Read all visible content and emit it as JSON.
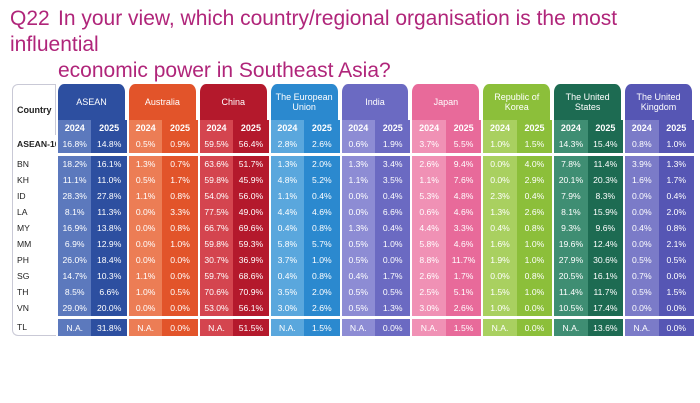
{
  "question": {
    "number": "Q22",
    "line1": "In your view, which country/regional organisation is the most influential",
    "line2": "economic power in Southeast Asia?"
  },
  "chart_data": {
    "type": "table",
    "row_header": "Country",
    "years": [
      "2024",
      "2025"
    ],
    "groups": [
      {
        "name": "ASEAN",
        "color": "#2d4fa0",
        "shade": "#5c79bd"
      },
      {
        "name": "Australia",
        "color": "#e2542a",
        "shade": "#ec7d55"
      },
      {
        "name": "China",
        "color": "#b4192c",
        "shade": "#d4454f"
      },
      {
        "name": "The European Union",
        "color": "#2b89cf",
        "shade": "#5aa7dd"
      },
      {
        "name": "India",
        "color": "#6b6ac2",
        "shade": "#8d8cd4"
      },
      {
        "name": "Japan",
        "color": "#e86a9a",
        "shade": "#f091b5"
      },
      {
        "name": "Republic of Korea",
        "color": "#8cbf3a",
        "shade": "#a9d060"
      },
      {
        "name": "The United States",
        "color": "#1d6b52",
        "shade": "#3f8e73"
      },
      {
        "name": "The United Kingdom",
        "color": "#5656b4",
        "shade": "#7b7bc8"
      }
    ],
    "rows": [
      {
        "country": "ASEAN-10",
        "values": [
          "16.8%",
          "14.8%",
          "0.5%",
          "0.9%",
          "59.5%",
          "56.4%",
          "2.8%",
          "2.6%",
          "0.6%",
          "1.9%",
          "3.7%",
          "5.5%",
          "1.0%",
          "1.5%",
          "14.3%",
          "15.4%",
          "0.8%",
          "1.0%"
        ]
      },
      {
        "country": "BN",
        "values": [
          "18.2%",
          "16.1%",
          "1.3%",
          "0.7%",
          "63.6%",
          "51.7%",
          "1.3%",
          "2.0%",
          "1.3%",
          "3.4%",
          "2.6%",
          "9.4%",
          "0.0%",
          "4.0%",
          "7.8%",
          "11.4%",
          "3.9%",
          "1.3%"
        ]
      },
      {
        "country": "KH",
        "values": [
          "11.1%",
          "11.0%",
          "0.5%",
          "1.7%",
          "59.8%",
          "45.9%",
          "4.8%",
          "5.2%",
          "1.1%",
          "3.5%",
          "1.1%",
          "7.6%",
          "0.0%",
          "2.9%",
          "20.1%",
          "20.3%",
          "1.6%",
          "1.7%"
        ]
      },
      {
        "country": "ID",
        "values": [
          "28.3%",
          "27.8%",
          "1.1%",
          "0.8%",
          "54.0%",
          "56.0%",
          "1.1%",
          "0.4%",
          "0.0%",
          "0.4%",
          "5.3%",
          "4.8%",
          "2.3%",
          "0.4%",
          "7.9%",
          "8.3%",
          "0.0%",
          "0.4%"
        ]
      },
      {
        "country": "LA",
        "values": [
          "8.1%",
          "11.3%",
          "0.0%",
          "3.3%",
          "77.5%",
          "49.0%",
          "4.4%",
          "4.6%",
          "0.0%",
          "6.6%",
          "0.6%",
          "4.6%",
          "1.3%",
          "2.6%",
          "8.1%",
          "15.9%",
          "0.0%",
          "2.0%"
        ]
      },
      {
        "country": "MY",
        "values": [
          "16.9%",
          "13.8%",
          "0.0%",
          "0.8%",
          "66.7%",
          "69.6%",
          "0.4%",
          "0.8%",
          "1.3%",
          "0.4%",
          "4.4%",
          "3.3%",
          "0.4%",
          "0.8%",
          "9.3%",
          "9.6%",
          "0.4%",
          "0.8%"
        ]
      },
      {
        "country": "MM",
        "values": [
          "6.9%",
          "12.9%",
          "0.0%",
          "1.0%",
          "59.8%",
          "59.3%",
          "5.8%",
          "5.7%",
          "0.5%",
          "1.0%",
          "5.8%",
          "4.6%",
          "1.6%",
          "1.0%",
          "19.6%",
          "12.4%",
          "0.0%",
          "2.1%"
        ]
      },
      {
        "country": "PH",
        "values": [
          "26.0%",
          "18.4%",
          "0.0%",
          "0.0%",
          "30.7%",
          "36.9%",
          "3.7%",
          "1.0%",
          "0.5%",
          "0.0%",
          "8.8%",
          "11.7%",
          "1.9%",
          "1.0%",
          "27.9%",
          "30.6%",
          "0.5%",
          "0.5%"
        ]
      },
      {
        "country": "SG",
        "values": [
          "14.7%",
          "10.3%",
          "1.1%",
          "0.0%",
          "59.7%",
          "68.6%",
          "0.4%",
          "0.8%",
          "0.4%",
          "1.7%",
          "2.6%",
          "1.7%",
          "0.0%",
          "0.8%",
          "20.5%",
          "16.1%",
          "0.7%",
          "0.0%"
        ]
      },
      {
        "country": "TH",
        "values": [
          "8.5%",
          "6.6%",
          "1.0%",
          "0.5%",
          "70.6%",
          "70.9%",
          "3.5%",
          "2.0%",
          "0.5%",
          "0.5%",
          "2.5%",
          "5.1%",
          "1.5%",
          "1.0%",
          "11.4%",
          "11.7%",
          "0.5%",
          "1.5%"
        ]
      },
      {
        "country": "VN",
        "values": [
          "29.0%",
          "20.0%",
          "0.0%",
          "0.0%",
          "53.0%",
          "56.1%",
          "3.0%",
          "2.6%",
          "0.5%",
          "1.3%",
          "3.0%",
          "2.6%",
          "1.0%",
          "0.0%",
          "10.5%",
          "17.4%",
          "0.0%",
          "0.0%"
        ]
      },
      {
        "country": "TL",
        "values": [
          "N.A.",
          "31.8%",
          "N.A.",
          "0.0%",
          "N.A.",
          "51.5%",
          "N.A.",
          "1.5%",
          "N.A.",
          "0.0%",
          "N.A.",
          "1.5%",
          "N.A.",
          "0.0%",
          "N.A.",
          "13.6%",
          "N.A.",
          "0.0%"
        ]
      }
    ]
  }
}
